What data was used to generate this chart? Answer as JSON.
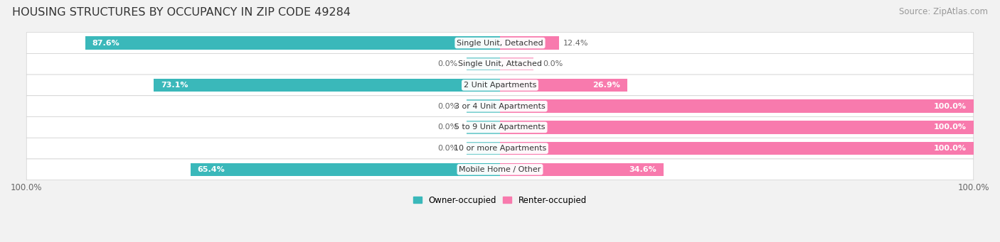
{
  "title": "HOUSING STRUCTURES BY OCCUPANCY IN ZIP CODE 49284",
  "source": "Source: ZipAtlas.com",
  "categories": [
    "Single Unit, Detached",
    "Single Unit, Attached",
    "2 Unit Apartments",
    "3 or 4 Unit Apartments",
    "5 to 9 Unit Apartments",
    "10 or more Apartments",
    "Mobile Home / Other"
  ],
  "owner_pct": [
    87.6,
    0.0,
    73.1,
    0.0,
    0.0,
    0.0,
    65.4
  ],
  "renter_pct": [
    12.4,
    0.0,
    26.9,
    100.0,
    100.0,
    100.0,
    34.6
  ],
  "owner_color": "#3ab8ba",
  "renter_color": "#f87aad",
  "bg_color": "#f2f2f2",
  "row_light": "#ffffff",
  "row_dark": "#ebebeb",
  "title_fontsize": 11.5,
  "label_fontsize": 8,
  "source_fontsize": 8.5,
  "legend_fontsize": 8.5,
  "pct_fontsize": 8
}
